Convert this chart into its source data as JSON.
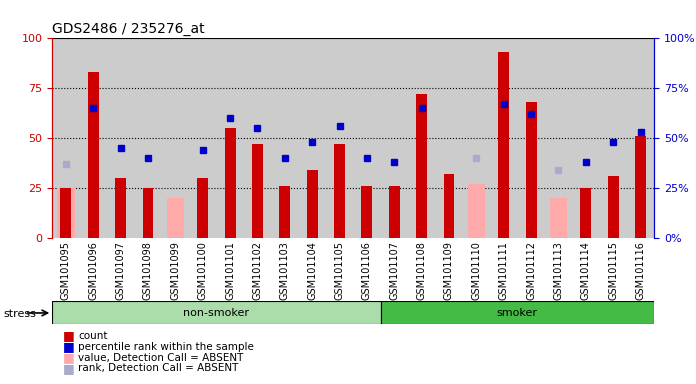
{
  "title": "GDS2486 / 235276_at",
  "samples": [
    "GSM101095",
    "GSM101096",
    "GSM101097",
    "GSM101098",
    "GSM101099",
    "GSM101100",
    "GSM101101",
    "GSM101102",
    "GSM101103",
    "GSM101104",
    "GSM101105",
    "GSM101106",
    "GSM101107",
    "GSM101108",
    "GSM101109",
    "GSM101110",
    "GSM101111",
    "GSM101112",
    "GSM101113",
    "GSM101114",
    "GSM101115",
    "GSM101116"
  ],
  "count": [
    25,
    83,
    30,
    25,
    null,
    30,
    55,
    47,
    26,
    34,
    47,
    26,
    26,
    72,
    32,
    null,
    93,
    68,
    null,
    25,
    31,
    51
  ],
  "percentile_rank": [
    null,
    65,
    45,
    40,
    null,
    44,
    60,
    55,
    40,
    48,
    56,
    40,
    38,
    65,
    null,
    null,
    67,
    62,
    null,
    38,
    48,
    53
  ],
  "absent_value": [
    25,
    null,
    null,
    null,
    20,
    null,
    null,
    null,
    null,
    null,
    null,
    null,
    null,
    null,
    null,
    27,
    null,
    null,
    20,
    null,
    null,
    null
  ],
  "absent_rank": [
    37,
    null,
    null,
    null,
    null,
    null,
    null,
    null,
    null,
    null,
    null,
    null,
    null,
    null,
    null,
    40,
    null,
    null,
    34,
    null,
    null,
    null
  ],
  "non_smoker_range": [
    0,
    11
  ],
  "smoker_range": [
    12,
    21
  ],
  "ylim": [
    0,
    100
  ],
  "yticks": [
    0,
    25,
    50,
    75,
    100
  ],
  "bar_color": "#cc0000",
  "blue_color": "#0000cc",
  "pink_color": "#ffaaaa",
  "light_blue_color": "#aaaacc",
  "non_smoker_color": "#aaddaa",
  "smoker_color": "#44bb44",
  "bg_color": "#cccccc",
  "plot_bg": "#ffffff",
  "title_fontsize": 10,
  "tick_fontsize": 7,
  "stress_label": "stress",
  "non_smoker_label": "non-smoker",
  "smoker_label": "smoker"
}
